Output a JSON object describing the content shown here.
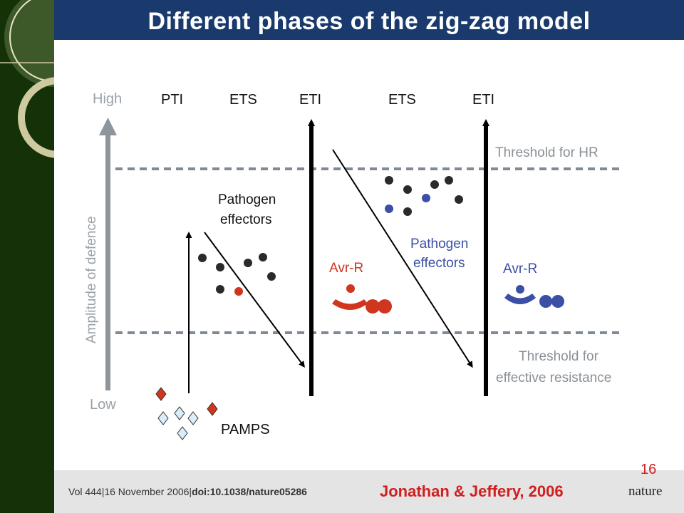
{
  "slide": {
    "title": "Different phases of the zig-zag model",
    "page_number": "16"
  },
  "diagram": {
    "axis": {
      "label": "Amplitude of defence",
      "high": "High",
      "low": "Low"
    },
    "phases": [
      "PTI",
      "ETS",
      "ETI",
      "ETS",
      "ETI"
    ],
    "thresholds": {
      "hr": "Threshold for HR",
      "resistance_line1": "Threshold for",
      "resistance_line2": "effective resistance"
    },
    "labels": {
      "pathogen_effectors_1a": "Pathogen",
      "pathogen_effectors_1b": "effectors",
      "pathogen_effectors_2a": "Pathogen",
      "pathogen_effectors_2b": "effectors",
      "avr_r_1": "Avr-R",
      "avr_r_2": "Avr-R",
      "pamps": "PAMPS"
    },
    "colors": {
      "arrow": "#000000",
      "axis": "#8e959b",
      "threshold": "#7f8a96",
      "red_effector": "#d0351e",
      "blue_effector": "#3b4fa6",
      "dark_effector": "#2a2a2a",
      "pamp_blue": "#8ec3e6",
      "pamp_red": "#d0351e"
    }
  },
  "footer": {
    "citation_prefix": "Vol 444|16 November 2006|",
    "citation_doi": "doi:10.1038/nature05286",
    "credit": "Jonathan & Jeffery, 2006",
    "journal": "nature"
  }
}
